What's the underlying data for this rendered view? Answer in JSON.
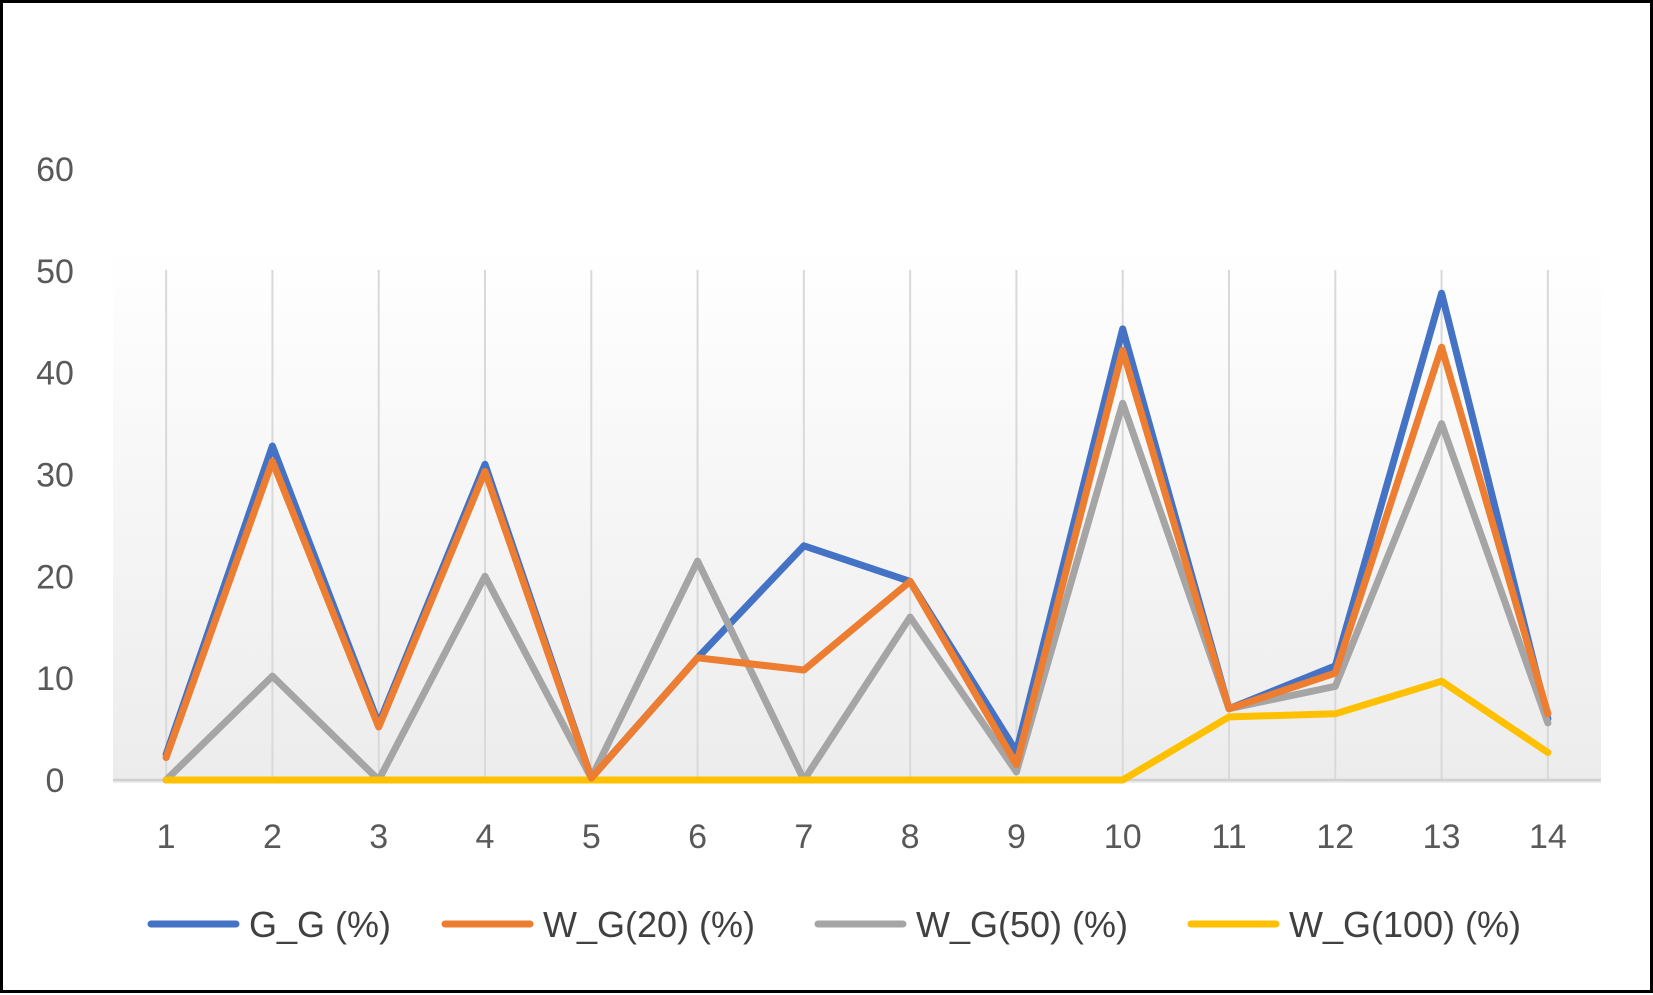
{
  "chart_data": {
    "type": "line",
    "categories": [
      "1",
      "2",
      "3",
      "4",
      "5",
      "6",
      "7",
      "8",
      "9",
      "10",
      "11",
      "12",
      "13",
      "14"
    ],
    "ylim": [
      0,
      60
    ],
    "yticks": [
      0,
      10,
      20,
      30,
      40,
      50,
      60
    ],
    "title": "",
    "xlabel": "",
    "ylabel": "",
    "grid": "vertical",
    "legend_position": "bottom",
    "series": [
      {
        "name": "G_G (%)",
        "color": "#4472C4",
        "values": [
          2.5,
          32.8,
          5.5,
          31.0,
          0.2,
          12.0,
          23.0,
          19.5,
          2.8,
          44.3,
          7.0,
          11.2,
          47.8,
          6.0
        ]
      },
      {
        "name": "W_G(20) (%)",
        "color": "#ED7D31",
        "values": [
          2.2,
          31.3,
          5.2,
          30.3,
          0.2,
          12.0,
          10.8,
          19.5,
          1.5,
          42.2,
          7.0,
          10.5,
          42.5,
          6.5
        ]
      },
      {
        "name": "W_G(50) (%)",
        "color": "#A5A5A5",
        "values": [
          0,
          10.2,
          0,
          20.0,
          0.2,
          21.5,
          0,
          16.0,
          0.8,
          37.0,
          7.0,
          9.2,
          35.0,
          5.6
        ]
      },
      {
        "name": "W_G(100) (%)",
        "color": "#FFC000",
        "values": [
          0,
          0,
          0,
          0,
          0,
          0,
          0,
          0,
          0,
          0,
          6.2,
          6.5,
          9.7,
          2.7
        ]
      }
    ]
  }
}
